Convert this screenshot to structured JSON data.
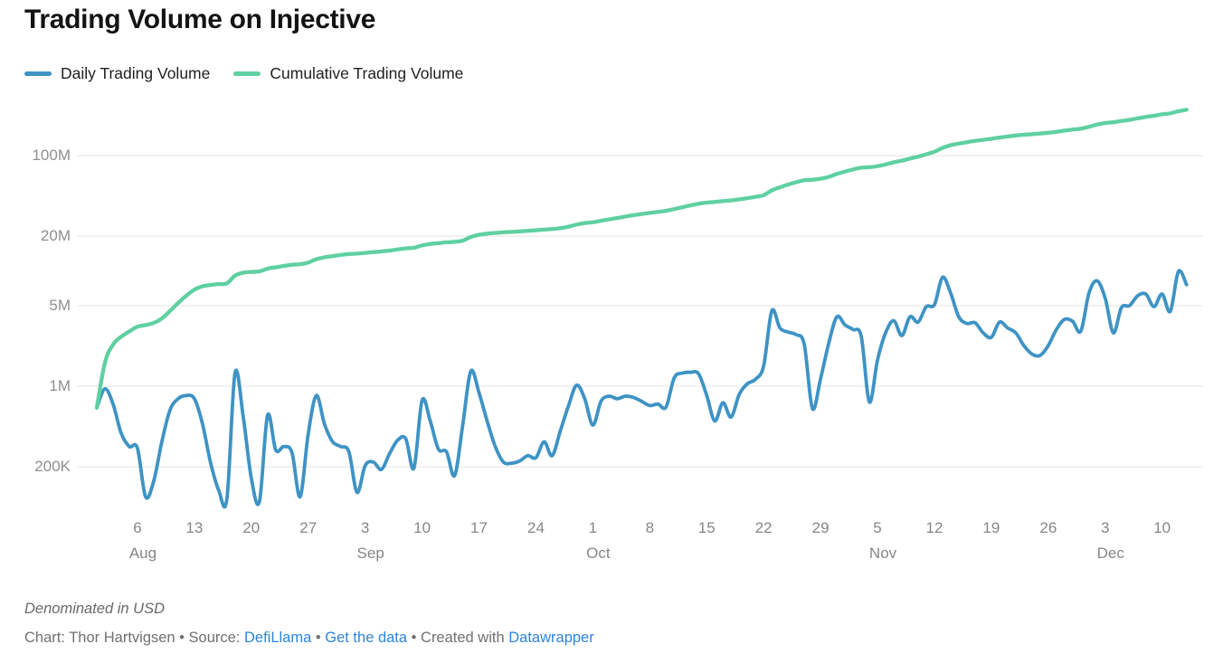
{
  "header": {
    "title": "Trading Volume on Injective"
  },
  "chart_data": {
    "type": "line",
    "title": "Trading Volume on Injective",
    "note": "Denominated in USD",
    "unit": "USD",
    "legend_position": "top-left",
    "grid": "horizontal",
    "x_axis": {
      "start_date": "Aug 1",
      "end_date": "Dec 13",
      "tick_labels": [
        {
          "label": "6",
          "day": 5,
          "month": "Aug"
        },
        {
          "label": "13",
          "day": 12
        },
        {
          "label": "20",
          "day": 19
        },
        {
          "label": "27",
          "day": 26
        },
        {
          "label": "3",
          "day": 33,
          "month": "Sep"
        },
        {
          "label": "10",
          "day": 40
        },
        {
          "label": "17",
          "day": 47
        },
        {
          "label": "24",
          "day": 54
        },
        {
          "label": "1",
          "day": 61,
          "month": "Oct"
        },
        {
          "label": "8",
          "day": 68
        },
        {
          "label": "15",
          "day": 75
        },
        {
          "label": "22",
          "day": 82
        },
        {
          "label": "29",
          "day": 89
        },
        {
          "label": "5",
          "day": 96,
          "month": "Nov"
        },
        {
          "label": "12",
          "day": 103
        },
        {
          "label": "19",
          "day": 110
        },
        {
          "label": "26",
          "day": 117
        },
        {
          "label": "3",
          "day": 124,
          "month": "Dec"
        },
        {
          "label": "10",
          "day": 131
        }
      ]
    },
    "y_axis": {
      "scale": "log",
      "range_millions": [
        0.09,
        300
      ],
      "tick_labels": [
        {
          "label": "200K",
          "value_millions": 0.2
        },
        {
          "label": "1M",
          "value_millions": 1
        },
        {
          "label": "5M",
          "value_millions": 5
        },
        {
          "label": "20M",
          "value_millions": 20
        },
        {
          "label": "100M",
          "value_millions": 100
        }
      ]
    },
    "series": [
      {
        "name": "Daily Trading Volume",
        "color": "#3e93c4",
        "values_millions_usd": [
          0.65,
          0.95,
          0.7,
          0.39,
          0.3,
          0.29,
          0.11,
          0.15,
          0.33,
          0.62,
          0.78,
          0.83,
          0.78,
          0.47,
          0.215,
          0.125,
          0.105,
          1.3,
          0.55,
          0.16,
          0.1,
          0.56,
          0.28,
          0.3,
          0.265,
          0.11,
          0.385,
          0.83,
          0.47,
          0.33,
          0.3,
          0.27,
          0.12,
          0.205,
          0.22,
          0.19,
          0.26,
          0.34,
          0.35,
          0.195,
          0.755,
          0.5,
          0.285,
          0.27,
          0.168,
          0.465,
          1.35,
          0.88,
          0.5,
          0.3,
          0.22,
          0.215,
          0.225,
          0.25,
          0.24,
          0.33,
          0.25,
          0.41,
          0.675,
          1.02,
          0.78,
          0.46,
          0.74,
          0.82,
          0.78,
          0.82,
          0.8,
          0.74,
          0.68,
          0.7,
          0.66,
          1.18,
          1.3,
          1.32,
          1.28,
          0.83,
          0.5,
          0.72,
          0.54,
          0.85,
          1.05,
          1.15,
          1.5,
          4.5,
          3.2,
          2.95,
          2.8,
          2.3,
          0.64,
          1.16,
          2.35,
          4.0,
          3.4,
          3.1,
          2.7,
          0.73,
          1.68,
          2.9,
          3.7,
          2.75,
          4.0,
          3.6,
          4.9,
          5.1,
          8.8,
          6.4,
          4.0,
          3.5,
          3.55,
          2.9,
          2.65,
          3.6,
          3.2,
          2.9,
          2.25,
          1.9,
          1.85,
          2.25,
          3.1,
          3.8,
          3.65,
          3.0,
          6.4,
          8.2,
          5.8,
          2.9,
          4.8,
          5.0,
          6.1,
          6.3,
          4.9,
          6.3,
          4.45,
          9.9,
          7.6
        ]
      },
      {
        "name": "Cumulative Trading Volume",
        "color": "#5fd0a1",
        "derivation": "running_sum_of_daily",
        "start_millions_usd": 0.65,
        "end_millions_usd": 249.8
      }
    ]
  },
  "footer": {
    "note": "Denominated in USD",
    "credit": {
      "prefix": "Chart: Thor Hartvigsen • Source: ",
      "link_source": "DefiLlama",
      "sep1": " • ",
      "link_data": "Get the data",
      "sep2": " • Created with ",
      "link_tool": "Datawrapper"
    }
  }
}
